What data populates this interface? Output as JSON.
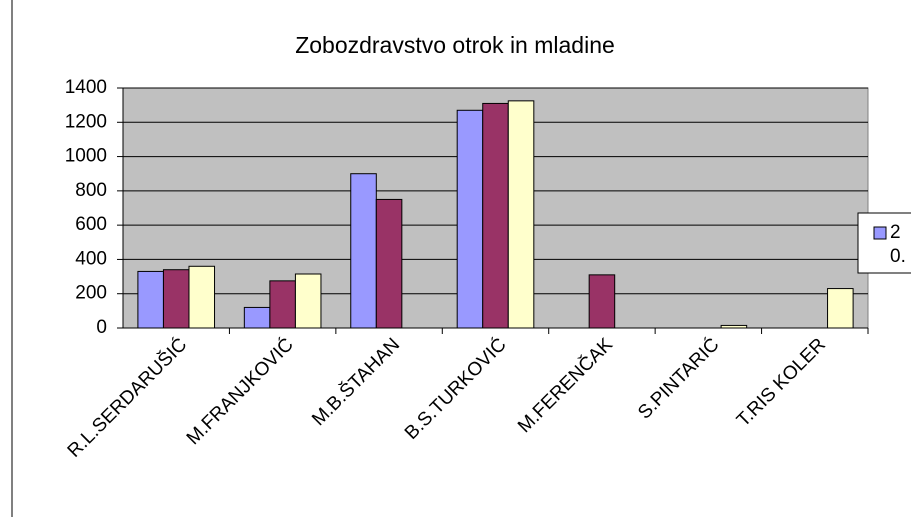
{
  "chart_data": {
    "type": "bar",
    "title": "Zobozdravstvo otrok in mladine",
    "categories": [
      "R.L.SERDARUŠIĆ",
      "M.FRANJKOVIĆ",
      "M.B.ŠTAHAN",
      "B.S.TURKOVIĆ",
      "M.FERENČAK",
      "S.PINTARIĆ",
      "T.RIS KOLER"
    ],
    "series": [
      {
        "name": "2",
        "color": "#9999ff",
        "values": [
          330,
          120,
          900,
          1270,
          0,
          0,
          0
        ]
      },
      {
        "name": "0.",
        "color": "#993366",
        "values": [
          340,
          275,
          750,
          1310,
          310,
          0,
          0
        ]
      },
      {
        "color": "#ffffcc",
        "values": [
          360,
          315,
          0,
          1325,
          0,
          15,
          230
        ]
      }
    ],
    "ylim": [
      0,
      1400
    ],
    "yticks": [
      0,
      200,
      400,
      600,
      800,
      1000,
      1200,
      1400
    ],
    "grid": true,
    "legend": "right"
  }
}
